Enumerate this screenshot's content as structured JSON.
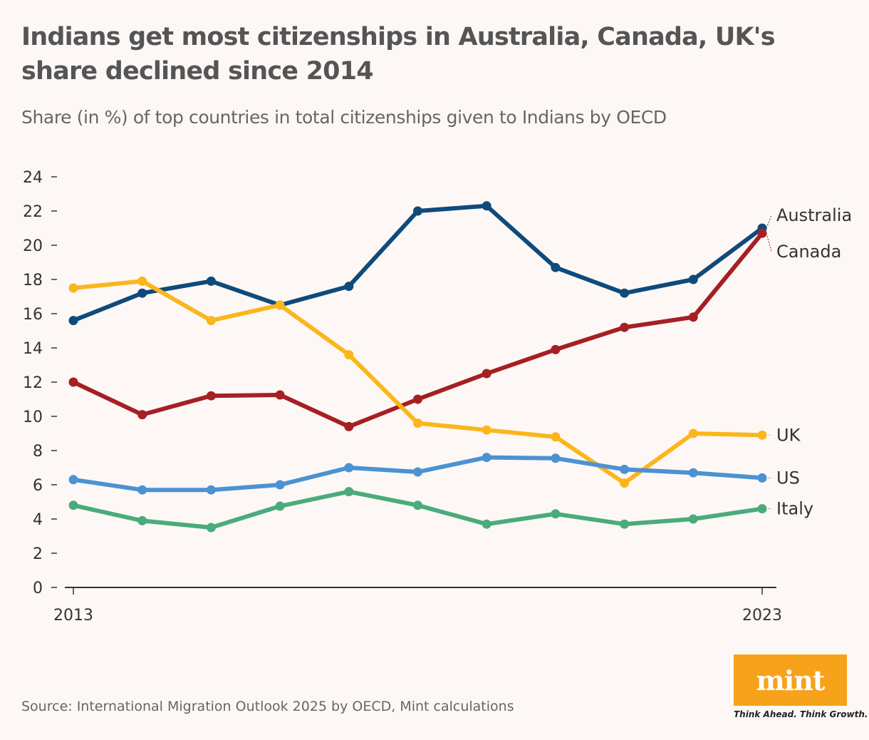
{
  "title": "Indians get most citizenships in Australia, Canada, UK's share declined since 2014",
  "subtitle": "Share (in %) of top countries in total citizenships given to Indians by OECD",
  "source": "Source: International Migration Outlook 2025 by OECD, Mint calculations",
  "logo": {
    "word": "mint",
    "tagline": "Think Ahead. Think Growth.",
    "color": "#f7a21b"
  },
  "chart_data": {
    "type": "line",
    "title": "Indians get most citizenships in Australia, Canada, UK's share declined since 2014",
    "subtitle": "Share (in %) of top countries in total citizenships given to Indians by OECD",
    "xlabel": "",
    "ylabel": "",
    "x": [
      2013,
      2014,
      2015,
      2016,
      2017,
      2018,
      2019,
      2020,
      2021,
      2022,
      2023
    ],
    "x_tick_labels": [
      "2013",
      "2023"
    ],
    "y_ticks": [
      0,
      2,
      4,
      6,
      8,
      10,
      12,
      14,
      16,
      18,
      20,
      22,
      24
    ],
    "ylim": [
      0,
      24
    ],
    "grid": false,
    "legend": "direct labels at right end of lines",
    "series": [
      {
        "name": "Australia",
        "color": "#0f4a7b",
        "values": [
          15.6,
          17.2,
          17.9,
          16.5,
          17.6,
          22.0,
          22.3,
          18.7,
          17.2,
          18.0,
          21.0
        ]
      },
      {
        "name": "Canada",
        "color": "#a51f24",
        "values": [
          12.0,
          10.1,
          11.2,
          11.25,
          9.4,
          11.0,
          12.5,
          13.9,
          15.2,
          15.8,
          20.7
        ]
      },
      {
        "name": "UK",
        "color": "#fbb61c",
        "values": [
          17.5,
          17.9,
          15.6,
          16.5,
          13.6,
          9.6,
          9.2,
          8.8,
          6.1,
          9.0,
          8.9
        ]
      },
      {
        "name": "US",
        "color": "#4b92d2",
        "values": [
          6.3,
          5.7,
          5.7,
          6.0,
          7.0,
          6.75,
          7.6,
          7.55,
          6.9,
          6.7,
          6.4
        ]
      },
      {
        "name": "Italy",
        "color": "#4aab7c",
        "values": [
          4.8,
          3.9,
          3.5,
          4.75,
          5.6,
          4.8,
          3.7,
          4.3,
          3.7,
          4.0,
          4.6
        ]
      }
    ]
  }
}
